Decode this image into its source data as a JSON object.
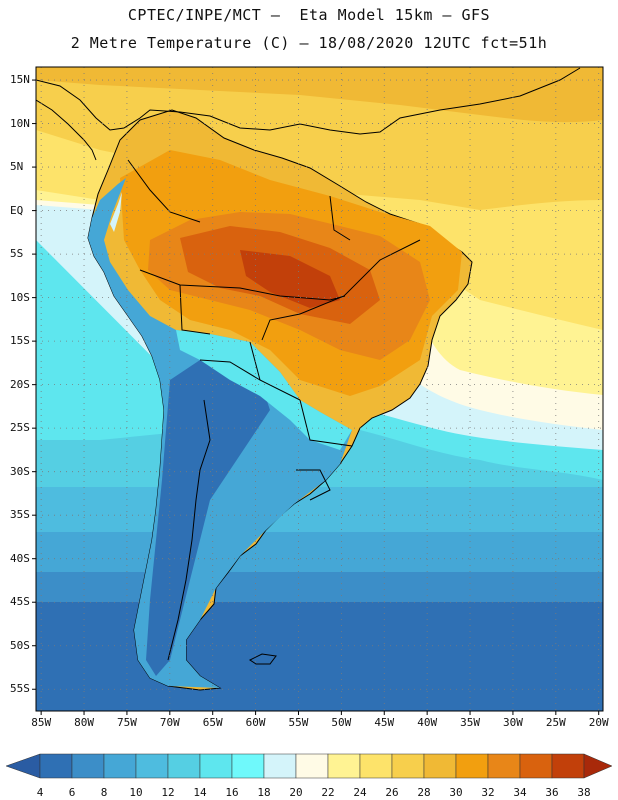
{
  "header": {
    "line1": "CPTEC/INPE/MCT –  Eta Model 15km – GFS",
    "line2": "2 Metre Temperature (C) – 18/08/2020 12UTC fct=51h"
  },
  "map": {
    "lat_labels": [
      "15N",
      "10N",
      "5N",
      "EQ",
      "5S",
      "10S",
      "15S",
      "20S",
      "25S",
      "30S",
      "35S",
      "40S",
      "45S",
      "50S",
      "55S"
    ],
    "lat_values": [
      15,
      10,
      5,
      0,
      -5,
      -10,
      -15,
      -20,
      -25,
      -30,
      -35,
      -40,
      -45,
      -50,
      -55
    ],
    "lon_labels": [
      "85W",
      "80W",
      "75W",
      "70W",
      "65W",
      "60W",
      "55W",
      "50W",
      "45W",
      "40W",
      "35W",
      "30W",
      "25W",
      "20W"
    ],
    "lon_values": [
      -85,
      -80,
      -75,
      -70,
      -65,
      -60,
      -55,
      -50,
      -45,
      -40,
      -35,
      -30,
      -25,
      -20
    ],
    "lon_range": [
      -85.6,
      -19.5
    ],
    "lat_range": [
      -57.5,
      16.5
    ]
  },
  "colorbar": {
    "labels": [
      "4",
      "6",
      "8",
      "10",
      "12",
      "14",
      "16",
      "18",
      "20",
      "22",
      "24",
      "26",
      "28",
      "30",
      "32",
      "34",
      "36",
      "38"
    ],
    "colors": [
      "#2a5ca3",
      "#2f70b4",
      "#3c8ec8",
      "#45a7d6",
      "#4ebcdf",
      "#55cfe3",
      "#5ee6ee",
      "#6ff9fb",
      "#d4f4fa",
      "#fffbe6",
      "#fff393",
      "#fde36a",
      "#f7cf4c",
      "#f0b935",
      "#f29f0f",
      "#e88618",
      "#d9620e",
      "#c2400a",
      "#a8290a"
    ]
  }
}
